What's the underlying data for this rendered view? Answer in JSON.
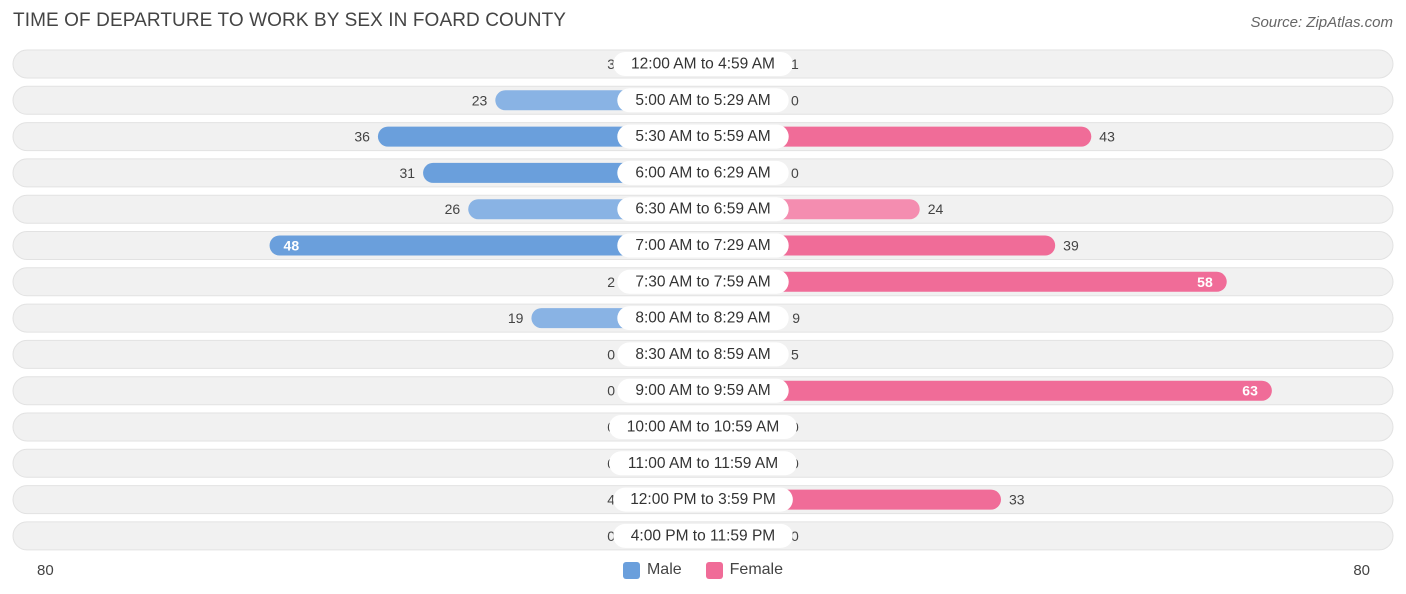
{
  "title": "TIME OF DEPARTURE TO WORK BY SEX IN FOARD COUNTY",
  "source": "Source: ZipAtlas.com",
  "legend": {
    "male_label": "Male",
    "female_label": "Female"
  },
  "axis": {
    "left_label": "80",
    "right_label": "80"
  },
  "colors": {
    "male": "#6a9fdc",
    "male_light": "#aac8ea",
    "female": "#f06c98",
    "female_light": "#f6a9c2",
    "row_bg": "#f1f1f1",
    "row_border": "#e2e2e2"
  },
  "chart_data": {
    "type": "bar",
    "orientation": "horizontal-diverging",
    "title": "TIME OF DEPARTURE TO WORK BY SEX IN FOARD COUNTY",
    "categories": [
      "12:00 AM to 4:59 AM",
      "5:00 AM to 5:29 AM",
      "5:30 AM to 5:59 AM",
      "6:00 AM to 6:29 AM",
      "6:30 AM to 6:59 AM",
      "7:00 AM to 7:29 AM",
      "7:30 AM to 7:59 AM",
      "8:00 AM to 8:29 AM",
      "8:30 AM to 8:59 AM",
      "9:00 AM to 9:59 AM",
      "10:00 AM to 10:59 AM",
      "11:00 AM to 11:59 AM",
      "12:00 PM to 3:59 PM",
      "4:00 PM to 11:59 PM"
    ],
    "series": [
      {
        "name": "Male",
        "values": [
          3,
          23,
          36,
          31,
          26,
          48,
          2,
          19,
          0,
          0,
          0,
          0,
          4,
          0
        ]
      },
      {
        "name": "Female",
        "values": [
          1,
          0,
          43,
          0,
          24,
          39,
          58,
          9,
          5,
          63,
          0,
          0,
          33,
          0
        ]
      }
    ],
    "xlim": [
      -80,
      80
    ],
    "legend_position": "bottom-center"
  }
}
